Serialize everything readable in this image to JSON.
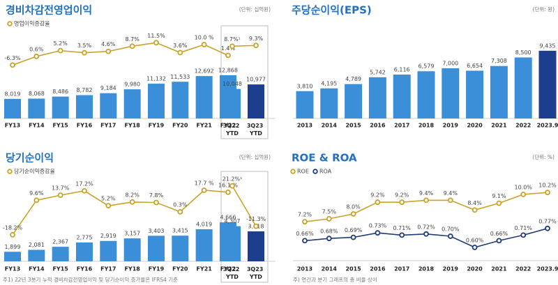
{
  "chart_data": [
    {
      "type": "combo",
      "title": "경비차감전영업이익",
      "unit": "(단위: 십억원)",
      "categories": [
        "FY13",
        "FY14",
        "FY15",
        "FY16",
        "FY17",
        "FY18",
        "FY19",
        "FY20",
        "FY21",
        "FY22",
        "3Q22 YTD",
        "3Q23 YTD"
      ],
      "bars": {
        "values": [
          8019,
          8068,
          8486,
          8782,
          9184,
          9980,
          11132,
          11533,
          12692,
          12868,
          10048,
          10977
        ],
        "value_labels": [
          "8,019",
          "8,068",
          "8,486",
          "8,782",
          "9,184",
          "9,980",
          "11,132",
          "11,533",
          "12,692",
          "12,868",
          "10,048",
          "10,977"
        ],
        "colors": [
          "#3b8fd8",
          "#3b8fd8",
          "#3b8fd8",
          "#3b8fd8",
          "#3b8fd8",
          "#3b8fd8",
          "#3b8fd8",
          "#3b8fd8",
          "#3b8fd8",
          "#3b8fd8",
          "#3b8fd8",
          "#1d3d8f"
        ]
      },
      "ylim": [
        4000,
        14000
      ],
      "line": {
        "name": "영업이익증감율",
        "color": "#c9a227",
        "axis": "y2",
        "values": [
          -6.3,
          0.6,
          5.2,
          3.5,
          4.6,
          8.7,
          11.5,
          3.6,
          10.0,
          1.4,
          8.7,
          9.3
        ],
        "value_labels": [
          "-6.3%",
          "0.6%",
          "5.2%",
          "3.5%",
          "4.6%",
          "8.7%",
          "11.5%",
          "3.6%",
          "10.0 %",
          "1.4%",
          "8.7%¹",
          "9.3%"
        ]
      },
      "y2lim": [
        -10,
        15
      ]
    },
    {
      "type": "bar",
      "title": "주당순이익(EPS)",
      "unit": "(단위: 원)",
      "categories": [
        "2013",
        "2014",
        "2015",
        "2016",
        "2017",
        "2018",
        "2019",
        "2020",
        "2021",
        "2022",
        "2023.9"
      ],
      "bars": {
        "values": [
          3810,
          4195,
          4789,
          5742,
          6116,
          6579,
          7000,
          6654,
          7308,
          8500,
          9435
        ],
        "value_labels": [
          "3,810",
          "4,195",
          "4,789",
          "5,742",
          "6,116",
          "6,579",
          "7,000",
          "6,654",
          "7,308",
          "8,500",
          "9,435"
        ],
        "colors": [
          "#3b8fd8",
          "#3b8fd8",
          "#3b8fd8",
          "#3b8fd8",
          "#3b8fd8",
          "#3b8fd8",
          "#3b8fd8",
          "#3b8fd8",
          "#3b8fd8",
          "#3b8fd8",
          "#1d3d8f"
        ]
      },
      "ylim": [
        0,
        10000
      ]
    },
    {
      "type": "combo",
      "title": "당기순이익",
      "unit": "(단위: 십억원)",
      "categories": [
        "FY13",
        "FY14",
        "FY15",
        "FY16",
        "FY17",
        "FY18",
        "FY19",
        "FY20",
        "FY21",
        "FY22",
        "3Q22 YTD",
        "3Q23 YTD"
      ],
      "bars": {
        "values": [
          1899,
          2081,
          2367,
          2775,
          2919,
          3157,
          3403,
          3415,
          4019,
          4666,
          4307,
          3818
        ],
        "value_labels": [
          "1,899",
          "2,081",
          "2,367",
          "2,775",
          "2,919",
          "3,157",
          "3,403",
          "3,415",
          "4,019",
          "4,666",
          "4,307",
          "3,818"
        ],
        "colors": [
          "#3b8fd8",
          "#3b8fd8",
          "#3b8fd8",
          "#3b8fd8",
          "#3b8fd8",
          "#3b8fd8",
          "#3b8fd8",
          "#3b8fd8",
          "#3b8fd8",
          "#3b8fd8",
          "#3b8fd8",
          "#1d3d8f"
        ]
      },
      "ylim": [
        1000,
        5000
      ],
      "line": {
        "name": "당기순이익증감율",
        "color": "#c9a227",
        "axis": "y2",
        "values": [
          -18.2,
          9.6,
          13.7,
          17.2,
          5.2,
          8.2,
          7.8,
          0.3,
          17.7,
          16.1,
          21.2,
          -11.3
        ],
        "value_labels": [
          "-18.2%",
          "9.6%",
          "13.7%",
          "17.2%",
          "5.2%",
          "8.2%",
          "7.8%",
          "0.3%",
          "17.7 %",
          "16.1 %",
          "21.2%¹",
          "-11.3%"
        ]
      },
      "y2lim": [
        -25,
        25
      ]
    },
    {
      "type": "line",
      "title": "ROE & ROA",
      "unit": "(단위: %)",
      "categories": [
        "2013",
        "2014",
        "2015",
        "2016",
        "2017",
        "2018",
        "2019",
        "2020",
        "2021",
        "2022",
        "2023.9"
      ],
      "series": [
        {
          "name": "ROE",
          "color": "#c9a227",
          "values": [
            7.2,
            7.5,
            8.0,
            9.2,
            9.2,
            9.4,
            9.4,
            8.4,
            9.1,
            10.0,
            10.2
          ],
          "value_labels": [
            "7.2%",
            "7.5%",
            "8.0%",
            "9.2%",
            "9.2%",
            "9.4%",
            "9.4%",
            "8.4%",
            "9.1%",
            "10.0%",
            "10.2%"
          ]
        },
        {
          "name": "ROA",
          "color": "#1f3b78",
          "axis": "y2",
          "values": [
            0.66,
            0.68,
            0.69,
            0.73,
            0.71,
            0.72,
            0.7,
            0.6,
            0.66,
            0.71,
            0.77
          ],
          "value_labels": [
            "0.66%",
            "0.68%",
            "0.69%",
            "0.73%",
            "0.71%",
            "0.72%",
            "0.70%",
            "0.60%",
            "0.66%",
            "0.71%",
            "0.77%"
          ]
        }
      ],
      "ylim": [
        4,
        11
      ],
      "y2lim": [
        0.5,
        0.8
      ]
    }
  ],
  "notes": [
    "주1) 22년 3분기 누적 경비차감전영업이익 및 당기순이익 증가율은 IFRS4 기준",
    "주) 연간과 분기 그래프의 총 비율 상이"
  ]
}
